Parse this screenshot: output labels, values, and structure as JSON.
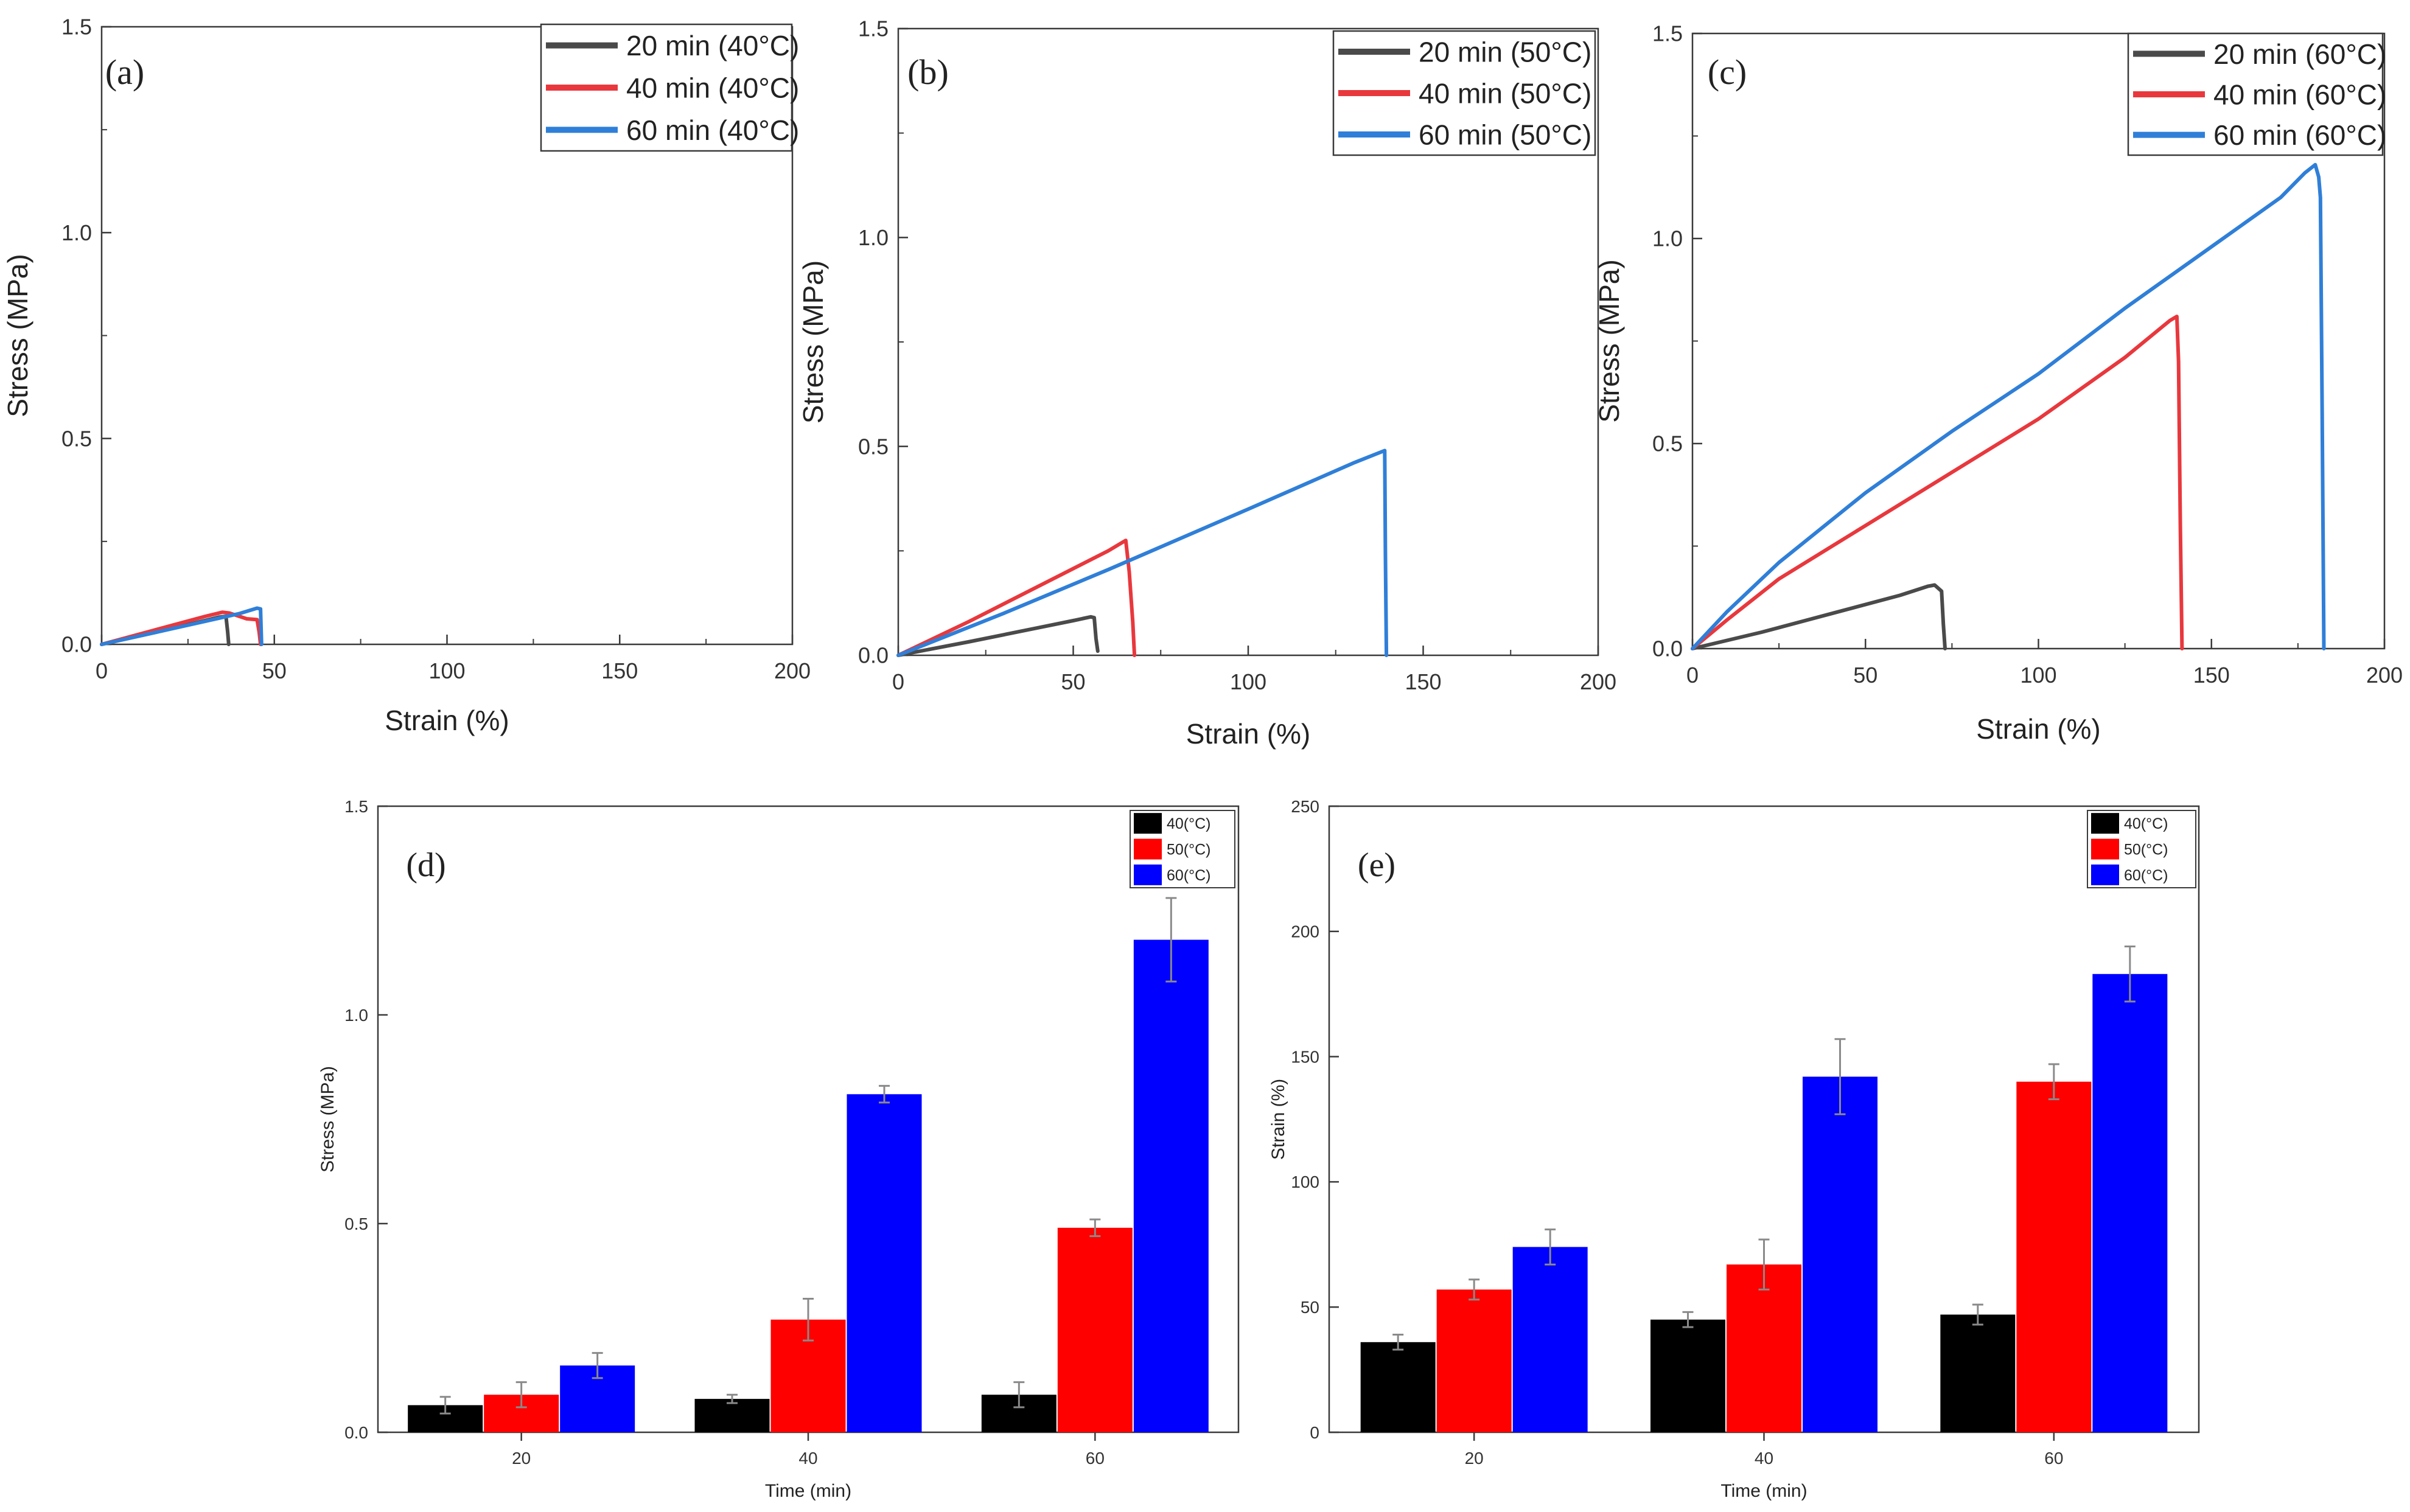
{
  "chart_data": [
    {
      "id": "a",
      "type": "line",
      "panel_label": "(a)",
      "xlabel": "Strain (%)",
      "ylabel": "Stress (MPa)",
      "xlim": [
        0,
        200
      ],
      "ylim": [
        0,
        1.5
      ],
      "xticks": [
        0,
        50,
        100,
        150,
        200
      ],
      "yticks": [
        0.0,
        0.5,
        1.0,
        1.5
      ],
      "ytick_labels": [
        "0.0",
        "0.5",
        "1.0",
        "1.5"
      ],
      "grid": false,
      "legend_position": "top-right",
      "series": [
        {
          "name": "20 min (40°C)",
          "color": "#4a4a4a",
          "x": [
            0,
            15,
            30,
            34,
            36,
            36.5,
            36.8
          ],
          "y": [
            0,
            0.028,
            0.058,
            0.066,
            0.068,
            0.03,
            0.0
          ]
        },
        {
          "name": "40 min (40°C)",
          "color": "#e8383d",
          "x": [
            0,
            15,
            30,
            35,
            37,
            42,
            45,
            45.6,
            46
          ],
          "y": [
            0,
            0.034,
            0.068,
            0.078,
            0.076,
            0.062,
            0.06,
            0.03,
            0.0
          ]
        },
        {
          "name": "60 min (40°C)",
          "color": "#2f7fd8",
          "x": [
            0,
            15,
            30,
            40,
            45,
            46,
            46.3
          ],
          "y": [
            0,
            0.028,
            0.056,
            0.075,
            0.088,
            0.086,
            0.0
          ]
        }
      ]
    },
    {
      "id": "b",
      "type": "line",
      "panel_label": "(b)",
      "xlabel": "Strain (%)",
      "ylabel": "Stress (MPa)",
      "xlim": [
        0,
        200
      ],
      "ylim": [
        0,
        1.5
      ],
      "xticks": [
        0,
        50,
        100,
        150,
        200
      ],
      "yticks": [
        0.0,
        0.5,
        1.0,
        1.5
      ],
      "ytick_labels": [
        "0.0",
        "0.5",
        "1.0",
        "1.5"
      ],
      "grid": false,
      "legend_position": "top-right",
      "series": [
        {
          "name": "20 min (50°C)",
          "color": "#4a4a4a",
          "x": [
            0,
            20,
            40,
            50,
            55,
            56,
            56.5,
            57
          ],
          "y": [
            0,
            0.032,
            0.066,
            0.083,
            0.092,
            0.09,
            0.04,
            0.01
          ]
        },
        {
          "name": "40 min (50°C)",
          "color": "#e8383d",
          "x": [
            0,
            20,
            40,
            60,
            64,
            65,
            66,
            67,
            67.5
          ],
          "y": [
            0,
            0.08,
            0.165,
            0.25,
            0.27,
            0.275,
            0.2,
            0.08,
            0.0
          ]
        },
        {
          "name": "60 min (50°C)",
          "color": "#2f7fd8",
          "x": [
            0,
            30,
            60,
            100,
            130,
            139,
            139.2,
            139.5
          ],
          "y": [
            0,
            0.1,
            0.205,
            0.35,
            0.46,
            0.49,
            0.25,
            0.0
          ]
        }
      ]
    },
    {
      "id": "c",
      "type": "line",
      "panel_label": "(c)",
      "xlabel": "Strain (%)",
      "ylabel": "Stress (MPa)",
      "xlim": [
        0,
        200
      ],
      "ylim": [
        0,
        1.5
      ],
      "xticks": [
        0,
        50,
        100,
        150,
        200
      ],
      "yticks": [
        0.0,
        0.5,
        1.0,
        1.5
      ],
      "ytick_labels": [
        "0.0",
        "0.5",
        "1.0",
        "1.5"
      ],
      "grid": false,
      "legend_position": "top-right",
      "series": [
        {
          "name": "20 min (60°C)",
          "color": "#4a4a4a",
          "x": [
            0,
            20,
            40,
            60,
            68,
            70,
            72,
            72.5,
            73
          ],
          "y": [
            0,
            0.04,
            0.085,
            0.13,
            0.152,
            0.155,
            0.14,
            0.06,
            0.0
          ]
        },
        {
          "name": "40 min (60°C)",
          "color": "#e8383d",
          "x": [
            0,
            10,
            25,
            50,
            75,
            100,
            125,
            138,
            140,
            140.5,
            141,
            141.5
          ],
          "y": [
            0,
            0.07,
            0.17,
            0.3,
            0.43,
            0.56,
            0.71,
            0.8,
            0.81,
            0.7,
            0.3,
            0.0
          ]
        },
        {
          "name": "60 min (60°C)",
          "color": "#2f7fd8",
          "x": [
            0,
            10,
            25,
            50,
            75,
            100,
            125,
            150,
            170,
            177,
            180,
            181,
            181.5,
            182,
            182.5
          ],
          "y": [
            0,
            0.09,
            0.21,
            0.38,
            0.53,
            0.67,
            0.83,
            0.98,
            1.1,
            1.16,
            1.18,
            1.15,
            1.1,
            0.57,
            0.0
          ]
        }
      ]
    },
    {
      "id": "d",
      "type": "bar",
      "panel_label": "(d)",
      "xlabel": "Time (min)",
      "ylabel": "Stress (MPa)",
      "categories": [
        "20",
        "40",
        "60"
      ],
      "ylim": [
        0,
        1.5
      ],
      "yticks": [
        0.0,
        0.5,
        1.0,
        1.5
      ],
      "ytick_labels": [
        "0.0",
        "0.5",
        "1.0",
        "1.5"
      ],
      "grid": false,
      "legend_position": "top-right",
      "series": [
        {
          "name": "40(°C)",
          "color": "#000000",
          "values": [
            0.065,
            0.08,
            0.09
          ],
          "errors": [
            0.02,
            0.01,
            0.03
          ]
        },
        {
          "name": "50(°C)",
          "color": "#ff0000",
          "values": [
            0.09,
            0.27,
            0.49
          ],
          "errors": [
            0.03,
            0.05,
            0.02
          ]
        },
        {
          "name": "60(°C)",
          "color": "#0000ff",
          "values": [
            0.16,
            0.81,
            1.18
          ],
          "errors": [
            0.03,
            0.02,
            0.1
          ]
        }
      ]
    },
    {
      "id": "e",
      "type": "bar",
      "panel_label": "(e)",
      "xlabel": "Time (min)",
      "ylabel": "Strain (%)",
      "categories": [
        "20",
        "40",
        "60"
      ],
      "ylim": [
        0,
        250
      ],
      "yticks": [
        0,
        50,
        100,
        150,
        200,
        250
      ],
      "ytick_labels": [
        "0",
        "50",
        "100",
        "150",
        "200",
        "250"
      ],
      "grid": false,
      "legend_position": "top-right",
      "series": [
        {
          "name": "40(°C)",
          "color": "#000000",
          "values": [
            36,
            45,
            47
          ],
          "errors": [
            3,
            3,
            4
          ]
        },
        {
          "name": "50(°C)",
          "color": "#ff0000",
          "values": [
            57,
            67,
            140
          ],
          "errors": [
            4,
            10,
            7
          ]
        },
        {
          "name": "60(°C)",
          "color": "#0000ff",
          "values": [
            74,
            142,
            183
          ],
          "errors": [
            7,
            15,
            11
          ]
        }
      ]
    }
  ]
}
